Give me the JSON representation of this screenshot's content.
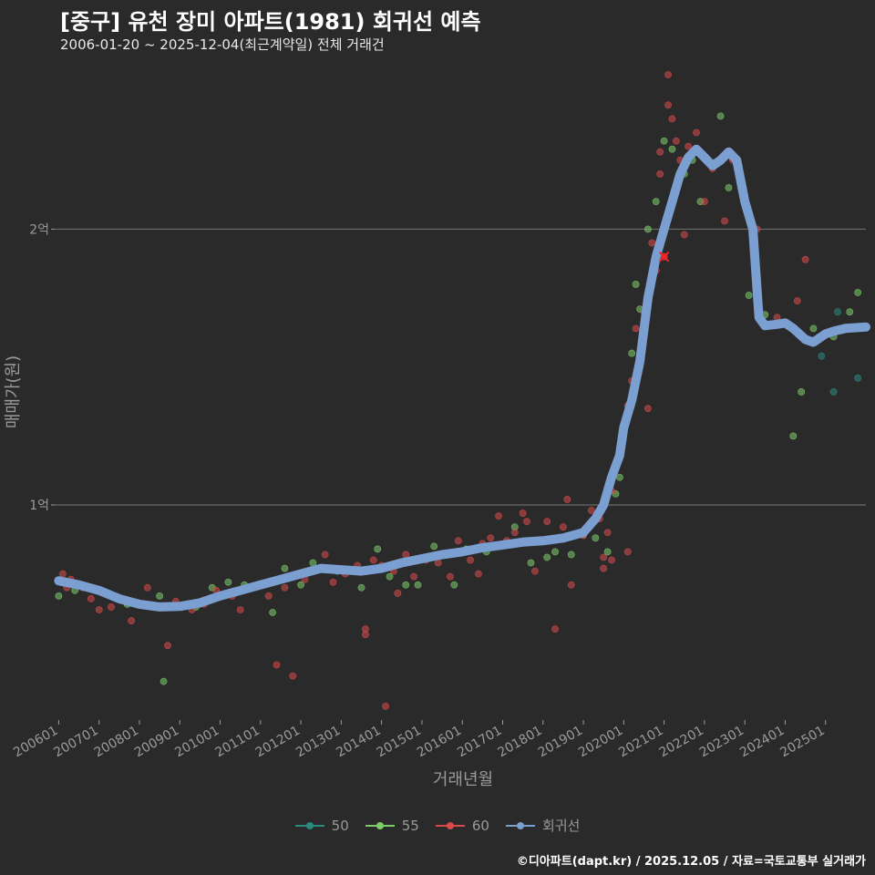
{
  "chart_data": {
    "type": "scatter",
    "title": "[중구] 유천 장미 아파트(1981) 회귀선 예측",
    "subtitle": "2006-01-20 ~ 2025-12-04(최근계약일) 전체 거래건",
    "xlabel": "거래년월",
    "ylabel": "매매가(원)",
    "ylim": [
      22000000,
      255000000
    ],
    "y_ticks": [
      {
        "value": 100000000,
        "label": "1억"
      },
      {
        "value": 200000000,
        "label": "2억"
      }
    ],
    "x_range_years": [
      2005.9,
      2026.0
    ],
    "x_ticks": [
      {
        "value": 2006,
        "label": "200601"
      },
      {
        "value": 2007,
        "label": "200701"
      },
      {
        "value": 2008,
        "label": "200801"
      },
      {
        "value": 2009,
        "label": "200901"
      },
      {
        "value": 2010,
        "label": "201001"
      },
      {
        "value": 2011,
        "label": "201101"
      },
      {
        "value": 2012,
        "label": "201201"
      },
      {
        "value": 2013,
        "label": "201301"
      },
      {
        "value": 2014,
        "label": "201401"
      },
      {
        "value": 2015,
        "label": "201501"
      },
      {
        "value": 2016,
        "label": "201601"
      },
      {
        "value": 2017,
        "label": "201701"
      },
      {
        "value": 2018,
        "label": "201801"
      },
      {
        "value": 2019,
        "label": "201901"
      },
      {
        "value": 2020,
        "label": "202001"
      },
      {
        "value": 2021,
        "label": "202101"
      },
      {
        "value": 2022,
        "label": "202201"
      },
      {
        "value": 2023,
        "label": "202301"
      },
      {
        "value": 2024,
        "label": "202401"
      },
      {
        "value": 2025,
        "label": "202501"
      }
    ],
    "series": [
      {
        "name": "50",
        "color": "#2a8a7f",
        "points": [
          [
            2024.9,
            154000000
          ],
          [
            2025.2,
            141000000
          ],
          [
            2025.3,
            170000000
          ],
          [
            2025.8,
            146000000
          ]
        ]
      },
      {
        "name": "55",
        "color": "#7ccc6a",
        "points": [
          [
            2006.0,
            67000000
          ],
          [
            2006.4,
            69000000
          ],
          [
            2007.2,
            68000000
          ],
          [
            2007.7,
            64000000
          ],
          [
            2008.1,
            64000000
          ],
          [
            2008.5,
            67000000
          ],
          [
            2008.6,
            36000000
          ],
          [
            2009.4,
            63000000
          ],
          [
            2009.8,
            70000000
          ],
          [
            2010.2,
            72000000
          ],
          [
            2010.6,
            71000000
          ],
          [
            2011.3,
            61000000
          ],
          [
            2011.6,
            77000000
          ],
          [
            2012.0,
            71000000
          ],
          [
            2012.3,
            79000000
          ],
          [
            2012.9,
            76000000
          ],
          [
            2013.5,
            70000000
          ],
          [
            2013.9,
            84000000
          ],
          [
            2014.2,
            74000000
          ],
          [
            2014.6,
            71000000
          ],
          [
            2014.9,
            71000000
          ],
          [
            2015.3,
            85000000
          ],
          [
            2015.8,
            71000000
          ],
          [
            2016.1,
            84000000
          ],
          [
            2016.6,
            83000000
          ],
          [
            2017.3,
            92000000
          ],
          [
            2017.7,
            79000000
          ],
          [
            2018.1,
            81000000
          ],
          [
            2018.3,
            83000000
          ],
          [
            2018.7,
            82000000
          ],
          [
            2019.0,
            89000000
          ],
          [
            2019.3,
            88000000
          ],
          [
            2019.6,
            83000000
          ],
          [
            2019.8,
            104000000
          ],
          [
            2019.9,
            110000000
          ],
          [
            2020.2,
            155000000
          ],
          [
            2020.3,
            180000000
          ],
          [
            2020.4,
            171000000
          ],
          [
            2020.6,
            200000000
          ],
          [
            2020.8,
            210000000
          ],
          [
            2021.0,
            232000000
          ],
          [
            2021.2,
            229000000
          ],
          [
            2021.5,
            220000000
          ],
          [
            2021.7,
            225000000
          ],
          [
            2021.9,
            210000000
          ],
          [
            2022.4,
            241000000
          ],
          [
            2022.6,
            215000000
          ],
          [
            2023.1,
            176000000
          ],
          [
            2023.5,
            169000000
          ],
          [
            2024.2,
            125000000
          ],
          [
            2024.4,
            141000000
          ],
          [
            2024.7,
            164000000
          ],
          [
            2025.2,
            161000000
          ],
          [
            2025.6,
            170000000
          ],
          [
            2025.8,
            177000000
          ]
        ]
      },
      {
        "name": "60",
        "color": "#d94a4a",
        "points": [
          [
            2006.1,
            75000000
          ],
          [
            2006.2,
            70000000
          ],
          [
            2006.3,
            73000000
          ],
          [
            2006.6,
            70000000
          ],
          [
            2006.8,
            66000000
          ],
          [
            2007.0,
            62000000
          ],
          [
            2007.3,
            63000000
          ],
          [
            2007.5,
            66000000
          ],
          [
            2007.8,
            58000000
          ],
          [
            2008.2,
            70000000
          ],
          [
            2008.5,
            63000000
          ],
          [
            2008.7,
            49000000
          ],
          [
            2008.9,
            65000000
          ],
          [
            2009.3,
            62000000
          ],
          [
            2009.6,
            64000000
          ],
          [
            2009.9,
            69000000
          ],
          [
            2010.3,
            67000000
          ],
          [
            2010.5,
            62000000
          ],
          [
            2010.8,
            70000000
          ],
          [
            2011.2,
            67000000
          ],
          [
            2011.4,
            42000000
          ],
          [
            2011.6,
            70000000
          ],
          [
            2011.8,
            38000000
          ],
          [
            2012.1,
            73000000
          ],
          [
            2012.3,
            76000000
          ],
          [
            2012.6,
            82000000
          ],
          [
            2012.8,
            72000000
          ],
          [
            2013.1,
            75000000
          ],
          [
            2013.4,
            78000000
          ],
          [
            2013.6,
            55000000
          ],
          [
            2013.6,
            53000000
          ],
          [
            2013.8,
            80000000
          ],
          [
            2014.0,
            78000000
          ],
          [
            2014.1,
            27000000
          ],
          [
            2014.3,
            76000000
          ],
          [
            2014.4,
            68000000
          ],
          [
            2014.6,
            82000000
          ],
          [
            2014.8,
            74000000
          ],
          [
            2015.1,
            80000000
          ],
          [
            2015.4,
            79000000
          ],
          [
            2015.7,
            74000000
          ],
          [
            2015.9,
            87000000
          ],
          [
            2016.2,
            80000000
          ],
          [
            2016.4,
            75000000
          ],
          [
            2016.5,
            86000000
          ],
          [
            2016.7,
            88000000
          ],
          [
            2016.9,
            96000000
          ],
          [
            2017.1,
            87000000
          ],
          [
            2017.3,
            90000000
          ],
          [
            2017.5,
            97000000
          ],
          [
            2017.6,
            94000000
          ],
          [
            2017.8,
            76000000
          ],
          [
            2018.0,
            87000000
          ],
          [
            2018.1,
            94000000
          ],
          [
            2018.3,
            55000000
          ],
          [
            2018.5,
            92000000
          ],
          [
            2018.6,
            102000000
          ],
          [
            2018.7,
            71000000
          ],
          [
            2019.0,
            89000000
          ],
          [
            2019.2,
            98000000
          ],
          [
            2019.4,
            95000000
          ],
          [
            2019.5,
            81000000
          ],
          [
            2019.5,
            77000000
          ],
          [
            2019.6,
            90000000
          ],
          [
            2019.7,
            105000000
          ],
          [
            2019.9,
            121000000
          ],
          [
            2020.1,
            136000000
          ],
          [
            2020.2,
            145000000
          ],
          [
            2020.3,
            164000000
          ],
          [
            2020.4,
            150000000
          ],
          [
            2020.5,
            170000000
          ],
          [
            2020.6,
            135000000
          ],
          [
            2020.7,
            195000000
          ],
          [
            2020.8,
            185000000
          ],
          [
            2020.9,
            220000000
          ],
          [
            2021.0,
            190000000
          ],
          [
            2021.1,
            245000000
          ],
          [
            2021.2,
            240000000
          ],
          [
            2021.3,
            232000000
          ],
          [
            2021.4,
            225000000
          ],
          [
            2021.6,
            230000000
          ],
          [
            2021.8,
            235000000
          ],
          [
            2022.0,
            210000000
          ],
          [
            2022.2,
            222000000
          ],
          [
            2022.5,
            203000000
          ],
          [
            2022.7,
            225000000
          ],
          [
            2022.9,
            215000000
          ],
          [
            2023.3,
            200000000
          ],
          [
            2023.8,
            168000000
          ],
          [
            2024.3,
            174000000
          ],
          [
            2024.5,
            189000000
          ],
          [
            2021.1,
            256000000
          ],
          [
            2021.5,
            198000000
          ],
          [
            2020.9,
            228000000
          ],
          [
            2020.1,
            83000000
          ],
          [
            2019.7,
            80000000
          ]
        ]
      }
    ],
    "regression": {
      "name": "회귀선",
      "color": "#7b9fd0",
      "points": [
        [
          2006.0,
          72500000
        ],
        [
          2006.5,
          71000000
        ],
        [
          2007.0,
          69000000
        ],
        [
          2007.5,
          66000000
        ],
        [
          2008.0,
          64000000
        ],
        [
          2008.5,
          63000000
        ],
        [
          2009.0,
          63200000
        ],
        [
          2009.5,
          64500000
        ],
        [
          2010.0,
          67000000
        ],
        [
          2010.5,
          69000000
        ],
        [
          2011.0,
          71000000
        ],
        [
          2011.5,
          73000000
        ],
        [
          2012.0,
          75000000
        ],
        [
          2012.5,
          77000000
        ],
        [
          2013.0,
          76500000
        ],
        [
          2013.5,
          76000000
        ],
        [
          2014.0,
          77000000
        ],
        [
          2014.5,
          79000000
        ],
        [
          2015.0,
          80500000
        ],
        [
          2015.5,
          82000000
        ],
        [
          2016.0,
          83000000
        ],
        [
          2016.5,
          84500000
        ],
        [
          2017.0,
          85500000
        ],
        [
          2017.5,
          86500000
        ],
        [
          2018.0,
          87000000
        ],
        [
          2018.5,
          88000000
        ],
        [
          2019.0,
          90000000
        ],
        [
          2019.3,
          95000000
        ],
        [
          2019.5,
          100000000
        ],
        [
          2019.7,
          110000000
        ],
        [
          2019.9,
          118000000
        ],
        [
          2020.0,
          128000000
        ],
        [
          2020.2,
          138000000
        ],
        [
          2020.4,
          152000000
        ],
        [
          2020.6,
          175000000
        ],
        [
          2020.8,
          190000000
        ],
        [
          2021.0,
          200000000
        ],
        [
          2021.2,
          210000000
        ],
        [
          2021.4,
          220000000
        ],
        [
          2021.6,
          226000000
        ],
        [
          2021.8,
          229000000
        ],
        [
          2022.0,
          226000000
        ],
        [
          2022.2,
          223000000
        ],
        [
          2022.4,
          225000000
        ],
        [
          2022.6,
          228000000
        ],
        [
          2022.8,
          225000000
        ],
        [
          2023.0,
          210000000
        ],
        [
          2023.2,
          200000000
        ],
        [
          2023.35,
          168000000
        ],
        [
          2023.5,
          165000000
        ],
        [
          2023.8,
          165500000
        ],
        [
          2024.0,
          166000000
        ],
        [
          2024.2,
          164000000
        ],
        [
          2024.5,
          160000000
        ],
        [
          2024.7,
          159000000
        ],
        [
          2025.0,
          162000000
        ],
        [
          2025.2,
          163000000
        ],
        [
          2025.5,
          164000000
        ],
        [
          2026.0,
          164500000
        ]
      ]
    },
    "highlight": {
      "x": 2021.0,
      "y": 190000000,
      "color": "#ff2222"
    }
  },
  "legend": {
    "items": [
      {
        "label": "50",
        "color": "#2a8a7f"
      },
      {
        "label": "55",
        "color": "#7ccc6a"
      },
      {
        "label": "60",
        "color": "#d94a4a"
      },
      {
        "label": "회귀선",
        "color": "#7b9fd0"
      }
    ]
  },
  "footer": {
    "credit": "©디아파트(dapt.kr) / 2025.12.05 / 자료=국토교통부 실거래가"
  }
}
